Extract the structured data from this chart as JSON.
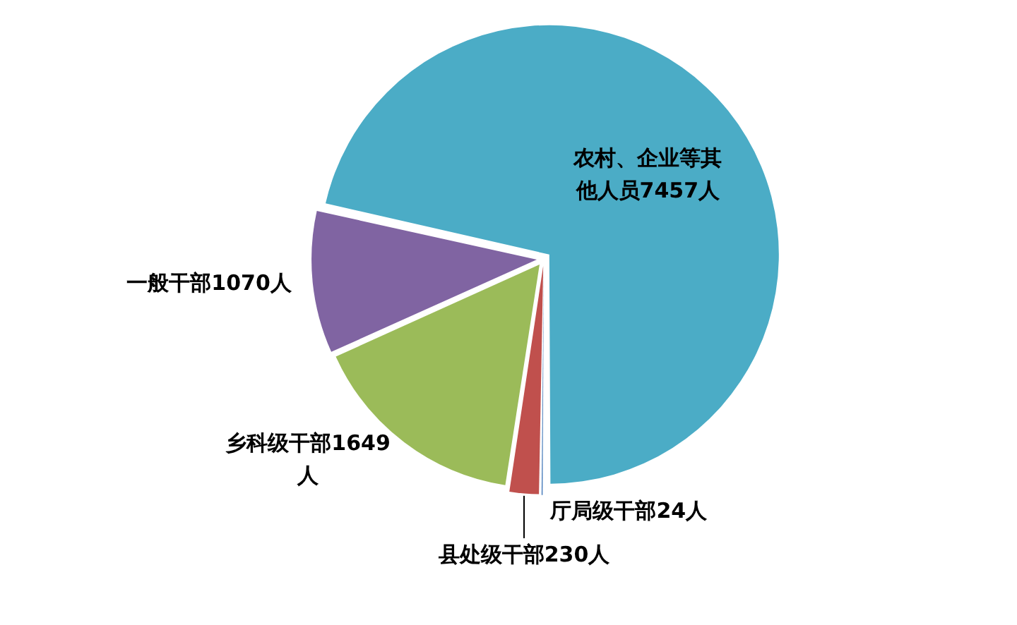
{
  "chart_data": {
    "type": "pie",
    "categories": [
      "厅局级干部",
      "县处级干部",
      "乡科级干部",
      "一般干部",
      "农村、企业等其他人员"
    ],
    "values": [
      24,
      230,
      1649,
      1070,
      7457
    ],
    "value_labels": [
      "24人",
      "230人",
      "1649人",
      "1070人",
      "7457人"
    ],
    "colors": [
      "#4f81bd",
      "#c0504d",
      "#9bbb59",
      "#8064a2",
      "#4bacc6"
    ],
    "legend": false
  }
}
